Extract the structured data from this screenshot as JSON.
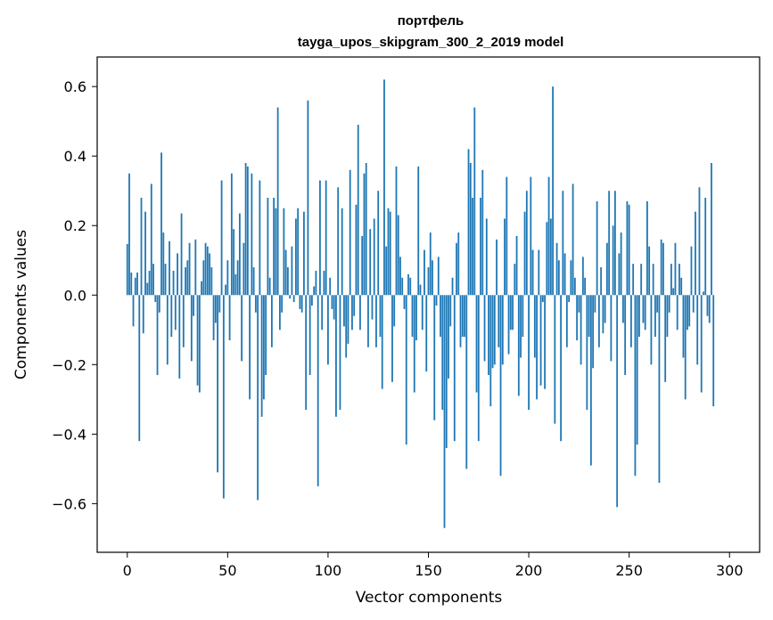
{
  "chart_data": {
    "type": "bar",
    "title_line1": "портфель",
    "title_line2": "tayga_upos_skipgram_300_2_2019 model",
    "xlabel": "Vector components",
    "ylabel": "Components values",
    "xlim": [
      -15,
      315
    ],
    "ylim": [
      -0.74,
      0.685
    ],
    "x_ticks": [
      0,
      50,
      100,
      150,
      200,
      250,
      300
    ],
    "y_ticks": [
      -0.6,
      -0.4,
      -0.2,
      0.0,
      0.2,
      0.4,
      0.6
    ],
    "x_tick_labels": [
      "0",
      "50",
      "100",
      "150",
      "200",
      "250",
      "300"
    ],
    "y_tick_labels": [
      "−0.6",
      "−0.4",
      "−0.2",
      "0.0",
      "0.2",
      "0.4",
      "0.6"
    ],
    "bar_color": "#1f77b4",
    "values": [
      0.147,
      0.35,
      0.065,
      -0.09,
      0.05,
      0.065,
      -0.42,
      0.28,
      -0.11,
      0.24,
      0.035,
      0.07,
      0.32,
      0.09,
      -0.02,
      -0.23,
      -0.05,
      0.41,
      0.18,
      0.09,
      -0.2,
      0.155,
      -0.12,
      0.07,
      -0.1,
      0.12,
      -0.24,
      0.235,
      -0.15,
      0.08,
      0.1,
      0.15,
      -0.19,
      -0.06,
      0.16,
      -0.26,
      -0.28,
      0.04,
      0.1,
      0.15,
      0.14,
      0.12,
      0.08,
      -0.13,
      -0.08,
      -0.51,
      -0.05,
      0.33,
      -0.585,
      0.03,
      0.1,
      -0.13,
      0.35,
      0.19,
      0.06,
      0.1,
      0.235,
      -0.19,
      0.15,
      0.38,
      0.37,
      -0.3,
      0.35,
      0.08,
      -0.05,
      -0.59,
      0.33,
      -0.35,
      -0.3,
      -0.23,
      0.28,
      0.05,
      -0.15,
      0.28,
      0.25,
      0.54,
      -0.1,
      -0.05,
      0.25,
      0.13,
      0.08,
      -0.01,
      0.14,
      -0.02,
      0.22,
      0.25,
      -0.04,
      -0.05,
      0.24,
      -0.33,
      0.56,
      -0.23,
      -0.03,
      0.025,
      0.07,
      -0.55,
      0.33,
      -0.1,
      0.07,
      0.33,
      -0.2,
      0.05,
      -0.04,
      -0.07,
      -0.35,
      0.31,
      -0.33,
      0.25,
      -0.09,
      -0.18,
      -0.14,
      0.36,
      -0.1,
      -0.06,
      0.26,
      0.49,
      -0.1,
      0.17,
      0.35,
      0.38,
      -0.15,
      0.19,
      -0.07,
      0.22,
      -0.15,
      0.3,
      -0.12,
      -0.27,
      0.62,
      0.14,
      0.25,
      0.24,
      -0.25,
      -0.09,
      0.37,
      0.23,
      0.11,
      0.05,
      -0.04,
      -0.43,
      0.06,
      0.05,
      -0.12,
      -0.28,
      -0.13,
      0.37,
      0.03,
      -0.1,
      0.13,
      -0.22,
      0.08,
      0.18,
      0.1,
      -0.36,
      -0.03,
      0.11,
      -0.12,
      -0.33,
      -0.67,
      -0.44,
      -0.24,
      -0.09,
      0.05,
      -0.42,
      0.15,
      0.18,
      -0.15,
      -0.12,
      -0.12,
      -0.5,
      0.42,
      0.38,
      0.28,
      0.54,
      -0.28,
      -0.42,
      0.28,
      0.36,
      -0.19,
      0.22,
      -0.23,
      -0.32,
      -0.21,
      -0.2,
      0.16,
      -0.15,
      -0.52,
      -0.2,
      0.22,
      0.34,
      -0.17,
      -0.1,
      -0.1,
      0.09,
      0.17,
      -0.29,
      -0.18,
      -0.12,
      0.24,
      0.3,
      -0.33,
      0.34,
      0.13,
      -0.18,
      -0.3,
      0.13,
      -0.26,
      -0.02,
      -0.27,
      0.21,
      0.34,
      0.22,
      0.6,
      -0.37,
      0.15,
      0.1,
      -0.42,
      0.3,
      0.12,
      -0.15,
      -0.02,
      0.1,
      0.32,
      0.05,
      -0.13,
      -0.05,
      -0.2,
      0.11,
      0.05,
      -0.33,
      -0.12,
      -0.49,
      -0.21,
      -0.05,
      0.27,
      -0.15,
      0.08,
      -0.11,
      -0.08,
      0.15,
      0.3,
      -0.19,
      0.2,
      0.3,
      -0.61,
      0.12,
      0.18,
      -0.08,
      -0.23,
      0.27,
      0.26,
      -0.15,
      0.09,
      -0.52,
      -0.43,
      -0.12,
      0.09,
      -0.08,
      -0.1,
      0.27,
      0.14,
      -0.2,
      0.09,
      -0.12,
      -0.05,
      -0.54,
      0.16,
      0.15,
      -0.25,
      -0.12,
      -0.05,
      0.09,
      0.02,
      0.15,
      -0.1,
      0.09,
      0.05,
      -0.18,
      -0.3,
      -0.1,
      -0.09,
      0.14,
      -0.05,
      0.24,
      -0.2,
      0.31,
      -0.28,
      0.01,
      0.28,
      -0.06,
      -0.08,
      0.38,
      -0.32
    ]
  }
}
